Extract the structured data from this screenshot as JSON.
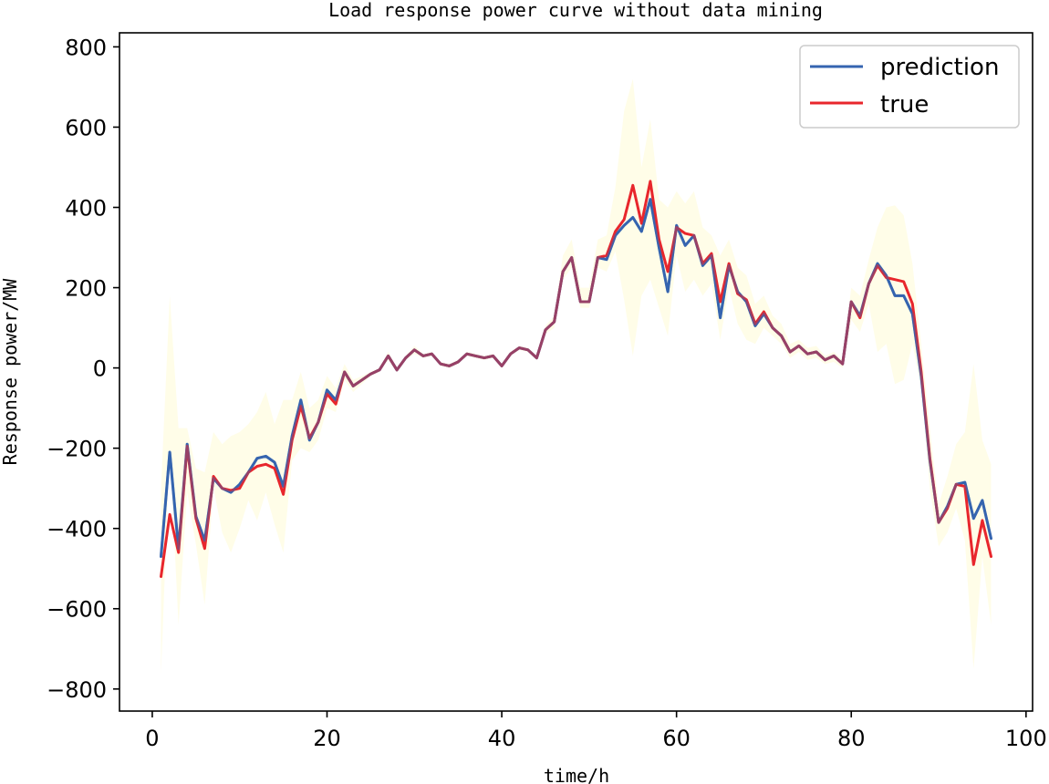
{
  "chart_data": {
    "type": "line",
    "title": "Load response power curve without data mining",
    "xlabel": "time/h",
    "ylabel": "Response power/MW",
    "xlim": [
      -3.75,
      100.75
    ],
    "ylim": [
      -855,
      835
    ],
    "xticks": [
      0,
      20,
      40,
      60,
      80,
      100
    ],
    "yticks": [
      -800,
      -600,
      -400,
      -200,
      0,
      200,
      400,
      600,
      800
    ],
    "xtick_labels": [
      "0",
      "20",
      "40",
      "60",
      "80",
      "100"
    ],
    "ytick_labels": [
      "−800",
      "−600",
      "−400",
      "−200",
      "0",
      "200",
      "400",
      "600",
      "800"
    ],
    "grid": false,
    "legend_position": "top-right",
    "x": [
      1,
      2,
      3,
      4,
      5,
      6,
      7,
      8,
      9,
      10,
      11,
      12,
      13,
      14,
      15,
      16,
      17,
      18,
      19,
      20,
      21,
      22,
      23,
      24,
      25,
      26,
      27,
      28,
      29,
      30,
      31,
      32,
      33,
      34,
      35,
      36,
      37,
      38,
      39,
      40,
      41,
      42,
      43,
      44,
      45,
      46,
      47,
      48,
      49,
      50,
      51,
      52,
      53,
      54,
      55,
      56,
      57,
      58,
      59,
      60,
      61,
      62,
      63,
      64,
      65,
      66,
      67,
      68,
      69,
      70,
      71,
      72,
      73,
      74,
      75,
      76,
      77,
      78,
      79,
      80,
      81,
      82,
      83,
      84,
      85,
      86,
      87,
      88,
      89,
      90,
      91,
      92,
      93,
      94,
      95,
      96
    ],
    "series": [
      {
        "name": "prediction",
        "color": "#3564b0",
        "values": [
          -470,
          -210,
          -450,
          -190,
          -370,
          -430,
          -275,
          -300,
          -310,
          -290,
          -260,
          -225,
          -220,
          -235,
          -295,
          -170,
          -80,
          -180,
          -135,
          -55,
          -80,
          -10,
          -45,
          -30,
          -15,
          -5,
          30,
          -5,
          25,
          45,
          30,
          35,
          10,
          5,
          15,
          35,
          30,
          25,
          30,
          5,
          35,
          50,
          45,
          25,
          95,
          115,
          240,
          275,
          165,
          165,
          275,
          270,
          330,
          355,
          375,
          340,
          420,
          300,
          190,
          355,
          305,
          330,
          255,
          280,
          125,
          255,
          190,
          165,
          105,
          135,
          100,
          80,
          40,
          55,
          35,
          40,
          20,
          30,
          10,
          165,
          130,
          210,
          260,
          230,
          180,
          180,
          135,
          -20,
          -230,
          -385,
          -345,
          -290,
          -285,
          -375,
          -330,
          -425
        ]
      },
      {
        "name": "true",
        "color": "#e8262c",
        "values": [
          -520,
          -365,
          -460,
          -195,
          -375,
          -450,
          -270,
          -300,
          -305,
          -300,
          -260,
          -245,
          -240,
          -250,
          -315,
          -180,
          -95,
          -175,
          -135,
          -65,
          -90,
          -10,
          -45,
          -30,
          -15,
          -5,
          30,
          -5,
          25,
          45,
          30,
          35,
          10,
          5,
          15,
          35,
          30,
          25,
          30,
          5,
          35,
          50,
          45,
          25,
          95,
          115,
          240,
          275,
          165,
          165,
          275,
          280,
          340,
          370,
          455,
          360,
          465,
          320,
          240,
          350,
          335,
          330,
          260,
          285,
          165,
          260,
          185,
          170,
          110,
          140,
          100,
          80,
          40,
          55,
          35,
          40,
          20,
          30,
          10,
          165,
          125,
          210,
          255,
          225,
          220,
          215,
          160,
          -10,
          -225,
          -385,
          -350,
          -290,
          -295,
          -490,
          -380,
          -470
        ]
      }
    ],
    "confidence_band": {
      "color": "#fffde8",
      "lower": [
        -760,
        -200,
        -640,
        -310,
        -440,
        -590,
        -300,
        -410,
        -460,
        -400,
        -330,
        -380,
        -310,
        -390,
        -460,
        -230,
        -200,
        -210,
        -180,
        -100,
        -110,
        -30,
        -60,
        -40,
        -20,
        -10,
        20,
        -10,
        20,
        35,
        25,
        30,
        5,
        0,
        10,
        30,
        25,
        20,
        25,
        0,
        30,
        45,
        40,
        20,
        85,
        100,
        220,
        250,
        150,
        150,
        250,
        240,
        290,
        170,
        30,
        180,
        220,
        150,
        80,
        280,
        190,
        220,
        180,
        210,
        70,
        200,
        110,
        70,
        60,
        100,
        80,
        60,
        25,
        40,
        20,
        25,
        10,
        15,
        0,
        120,
        90,
        160,
        40,
        60,
        -40,
        -30,
        60,
        -50,
        -300,
        -445,
        -410,
        -350,
        -430,
        -750,
        -470,
        -640
      ],
      "upper": [
        -300,
        180,
        -150,
        -150,
        -250,
        -260,
        -160,
        -190,
        -170,
        -160,
        -140,
        -110,
        -60,
        -140,
        -80,
        -80,
        -10,
        -100,
        -80,
        -20,
        -50,
        10,
        -30,
        -20,
        -10,
        0,
        40,
        0,
        30,
        55,
        35,
        40,
        15,
        10,
        20,
        40,
        35,
        30,
        35,
        10,
        40,
        55,
        50,
        30,
        105,
        130,
        280,
        320,
        200,
        200,
        320,
        330,
        450,
        640,
        720,
        500,
        620,
        420,
        400,
        440,
        410,
        440,
        350,
        330,
        280,
        320,
        250,
        230,
        160,
        180,
        130,
        110,
        60,
        70,
        50,
        55,
        30,
        40,
        20,
        200,
        180,
        270,
        350,
        400,
        405,
        380,
        260,
        60,
        -150,
        -340,
        -270,
        -190,
        -160,
        10,
        -180,
        -240
      ]
    }
  }
}
